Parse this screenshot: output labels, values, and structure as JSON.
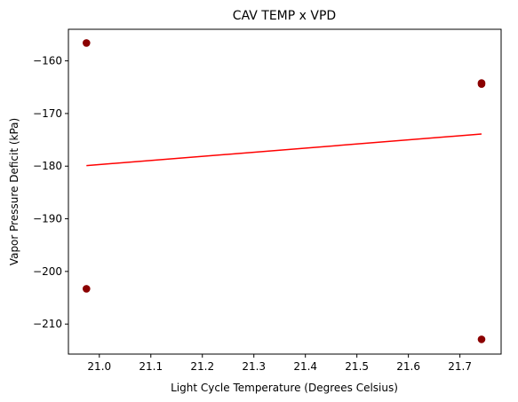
{
  "chart_data": {
    "type": "scatter",
    "title": "CAV TEMP x VPD",
    "xlabel": "Light Cycle Temperature (Degrees Celsius)",
    "ylabel": "Vapor Pressure Deficit (kPa)",
    "xlim": [
      20.94,
      21.78
    ],
    "ylim": [
      -215.7,
      -154.0
    ],
    "xticks": [
      21.0,
      21.1,
      21.2,
      21.3,
      21.4,
      21.5,
      21.6,
      21.7
    ],
    "xtick_labels": [
      "21.0",
      "21.1",
      "21.2",
      "21.3",
      "21.4",
      "21.5",
      "21.6",
      "21.7"
    ],
    "yticks": [
      -160,
      -170,
      -180,
      -190,
      -200,
      -210
    ],
    "ytick_labels": [
      "−160",
      "−170",
      "−180",
      "−190",
      "−200",
      "−210"
    ],
    "grid": false,
    "points": {
      "color": "#8b0000",
      "x": [
        20.975,
        20.975,
        21.742,
        21.742,
        21.742
      ],
      "y": [
        -156.6,
        -203.3,
        -164.2,
        -164.4,
        -212.9
      ]
    },
    "trend_line": {
      "color": "#ff0000",
      "x": [
        20.975,
        21.742
      ],
      "y": [
        -179.9,
        -173.9
      ]
    }
  }
}
